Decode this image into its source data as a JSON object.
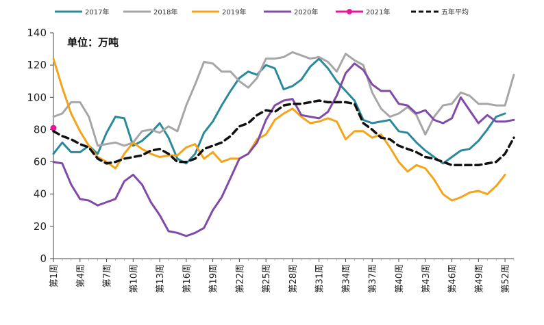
{
  "chart_data": {
    "type": "line",
    "title": "",
    "unit_label": "单位：万吨",
    "xlabel": "",
    "ylabel": "",
    "ylim": [
      0,
      140
    ],
    "yticks": [
      0,
      20,
      40,
      60,
      80,
      100,
      120,
      140
    ],
    "grid": false,
    "legend_position": "top",
    "x_tick_labels": [
      "第1周",
      "第4周",
      "第7周",
      "第10周",
      "第13周",
      "第16周",
      "第19周",
      "第22周",
      "第25周",
      "第28周",
      "第31周",
      "第34周",
      "第37周",
      "第40周",
      "第43周",
      "第46周",
      "第49周",
      "第52周"
    ],
    "x_tick_weeks": [
      1,
      4,
      7,
      10,
      13,
      16,
      19,
      22,
      25,
      28,
      31,
      34,
      37,
      40,
      43,
      46,
      49,
      52
    ],
    "series": [
      {
        "name": "2017年",
        "color": "#2b8a9a",
        "dash": "solid",
        "x": [
          1,
          2,
          3,
          4,
          5,
          6,
          7,
          8,
          9,
          10,
          11,
          12,
          13,
          14,
          15,
          16,
          17,
          18,
          19,
          20,
          21,
          22,
          23,
          24,
          25,
          26,
          27,
          28,
          29,
          30,
          31,
          32,
          33,
          34,
          35,
          36,
          37,
          38,
          39,
          40,
          41,
          42,
          43,
          44,
          45,
          46,
          47,
          48,
          49,
          50,
          51,
          52,
          53
        ],
        "values": [
          65,
          72,
          66,
          66,
          70,
          65,
          78,
          88,
          87,
          70,
          73,
          78,
          84,
          75,
          62,
          59,
          65,
          78,
          85,
          95,
          104,
          112,
          116,
          114,
          120,
          118,
          105,
          107,
          111,
          119,
          124,
          118,
          110,
          104,
          98,
          86,
          84,
          85,
          86,
          79,
          78,
          72,
          67,
          63,
          59,
          63,
          67,
          68,
          73,
          80,
          88,
          90,
          null
        ]
      },
      {
        "name": "2018年",
        "color": "#a6a6a6",
        "dash": "solid",
        "x": [
          1,
          2,
          3,
          4,
          5,
          6,
          7,
          8,
          9,
          10,
          11,
          12,
          13,
          14,
          15,
          16,
          17,
          18,
          19,
          20,
          21,
          22,
          23,
          24,
          25,
          26,
          27,
          28,
          29,
          30,
          31,
          32,
          33,
          34,
          35,
          36,
          37,
          38,
          39,
          40,
          41,
          42,
          43,
          44,
          45,
          46,
          47,
          48,
          49,
          50,
          51,
          52,
          53
        ],
        "values": [
          88,
          90,
          97,
          97,
          88,
          70,
          71,
          72,
          70,
          72,
          79,
          80,
          78,
          82,
          79,
          95,
          108,
          122,
          121,
          116,
          116,
          110,
          106,
          112,
          124,
          124,
          125,
          128,
          126,
          124,
          125,
          122,
          116,
          127,
          123,
          120,
          103,
          93,
          88,
          90,
          94,
          89,
          77,
          88,
          95,
          96,
          103,
          101,
          96,
          96,
          95,
          95,
          114
        ]
      },
      {
        "name": "2019年",
        "color": "#f5a31a",
        "dash": "solid",
        "x": [
          1,
          2,
          3,
          4,
          5,
          6,
          7,
          8,
          9,
          10,
          11,
          12,
          13,
          14,
          15,
          16,
          17,
          18,
          19,
          20,
          21,
          22,
          23,
          24,
          25,
          26,
          27,
          28,
          29,
          30,
          31,
          32,
          33,
          34,
          35,
          36,
          37,
          38,
          39,
          40,
          41,
          42,
          43,
          44,
          45,
          46,
          47,
          48,
          49,
          50,
          51,
          52,
          53
        ],
        "values": [
          124,
          106,
          90,
          79,
          70,
          63,
          60,
          56,
          65,
          72,
          68,
          65,
          63,
          64,
          64,
          69,
          71,
          62,
          66,
          60,
          62,
          62,
          65,
          74,
          77,
          86,
          90,
          93,
          88,
          84,
          85,
          87,
          85,
          74,
          79,
          79,
          75,
          77,
          69,
          60,
          54,
          58,
          56,
          49,
          40,
          36,
          38,
          41,
          42,
          40,
          45,
          52,
          null
        ]
      },
      {
        "name": "2020年",
        "color": "#7f4aa8",
        "dash": "solid",
        "x": [
          1,
          2,
          3,
          4,
          5,
          6,
          7,
          8,
          9,
          10,
          11,
          12,
          13,
          14,
          15,
          16,
          17,
          18,
          19,
          20,
          21,
          22,
          23,
          24,
          25,
          26,
          27,
          28,
          29,
          30,
          31,
          32,
          33,
          34,
          35,
          36,
          37,
          38,
          39,
          40,
          41,
          42,
          43,
          44,
          45,
          46,
          47,
          48,
          49,
          50,
          51,
          52,
          53
        ],
        "values": [
          60,
          59,
          46,
          37,
          36,
          33,
          35,
          37,
          48,
          52,
          46,
          35,
          27,
          17,
          16,
          14,
          16,
          19,
          30,
          38,
          50,
          62,
          65,
          72,
          86,
          95,
          98,
          99,
          89,
          88,
          87,
          91,
          101,
          115,
          121,
          117,
          108,
          104,
          104,
          96,
          95,
          90,
          92,
          86,
          84,
          87,
          100,
          92,
          84,
          89,
          85,
          85,
          86
        ]
      },
      {
        "name": "2021年",
        "color": "#e6189a",
        "dash": "solid",
        "marker": "circle",
        "x": [
          1
        ],
        "values": [
          81
        ]
      },
      {
        "name": "五年平均",
        "color": "#111111",
        "dash": "dashed",
        "x": [
          1,
          2,
          3,
          4,
          5,
          6,
          7,
          8,
          9,
          10,
          11,
          12,
          13,
          14,
          15,
          16,
          17,
          18,
          19,
          20,
          21,
          22,
          23,
          24,
          25,
          26,
          27,
          28,
          29,
          30,
          31,
          32,
          33,
          34,
          35,
          36,
          37,
          38,
          39,
          40,
          41,
          42,
          43,
          44,
          45,
          46,
          47,
          48,
          49,
          50,
          51,
          52,
          53
        ],
        "values": [
          79,
          76,
          74,
          71,
          69,
          62,
          59,
          60,
          62,
          63,
          64,
          67,
          68,
          65,
          60,
          60,
          62,
          68,
          70,
          72,
          76,
          82,
          84,
          89,
          92,
          91,
          95,
          96,
          96,
          97,
          98,
          97,
          97,
          97,
          96,
          84,
          80,
          75,
          74,
          70,
          68,
          66,
          63,
          62,
          60,
          58,
          58,
          58,
          58,
          59,
          60,
          65,
          75
        ]
      }
    ]
  }
}
